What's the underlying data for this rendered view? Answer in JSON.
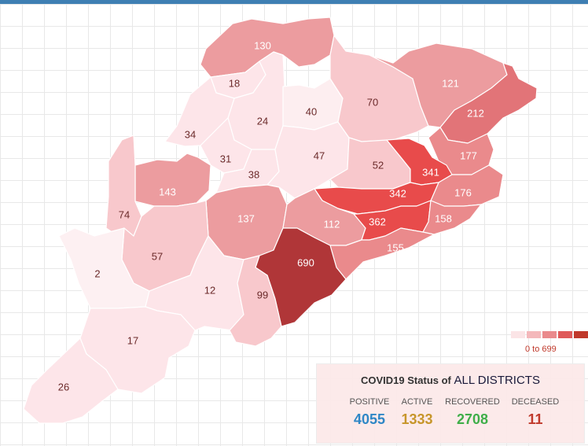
{
  "map": {
    "legend": {
      "colors": [
        "#fbe4e6",
        "#f4b8bb",
        "#ea8a8c",
        "#df5a5a",
        "#c0392b"
      ],
      "range_label": "0 to 699"
    },
    "districts": [
      {
        "id": "d130",
        "value": "130",
        "color": "#ec9c9f"
      },
      {
        "id": "d18",
        "value": "18",
        "color": "#fde5e9"
      },
      {
        "id": "d24",
        "value": "24",
        "color": "#fde5e9"
      },
      {
        "id": "d40",
        "value": "40",
        "color": "#fdeef0"
      },
      {
        "id": "d34",
        "value": "34",
        "color": "#fde5e9"
      },
      {
        "id": "d31",
        "value": "31",
        "color": "#fde5e9"
      },
      {
        "id": "d38",
        "value": "38",
        "color": "#fde5e9"
      },
      {
        "id": "d47",
        "value": "47",
        "color": "#fde5e9"
      },
      {
        "id": "d70",
        "value": "70",
        "color": "#f8c8cc"
      },
      {
        "id": "d121",
        "value": "121",
        "color": "#ec9c9f"
      },
      {
        "id": "d212",
        "value": "212",
        "color": "#e27478"
      },
      {
        "id": "d177",
        "value": "177",
        "color": "#ea8a8c"
      },
      {
        "id": "d52",
        "value": "52",
        "color": "#f8c8cc"
      },
      {
        "id": "d341",
        "value": "341",
        "color": "#e84b4b"
      },
      {
        "id": "d176",
        "value": "176",
        "color": "#ea8a8c"
      },
      {
        "id": "d342",
        "value": "342",
        "color": "#e84b4b"
      },
      {
        "id": "d143",
        "value": "143",
        "color": "#ec9c9f"
      },
      {
        "id": "d74",
        "value": "74",
        "color": "#f8c8cc"
      },
      {
        "id": "d137",
        "value": "137",
        "color": "#ec9c9f"
      },
      {
        "id": "d112",
        "value": "112",
        "color": "#ec9c9f"
      },
      {
        "id": "d362",
        "value": "362",
        "color": "#e84b4b"
      },
      {
        "id": "d158",
        "value": "158",
        "color": "#ea8a8c"
      },
      {
        "id": "d155",
        "value": "155",
        "color": "#ea8a8c"
      },
      {
        "id": "d57",
        "value": "57",
        "color": "#f8c8cc"
      },
      {
        "id": "d690",
        "value": "690",
        "color": "#b03638"
      },
      {
        "id": "d2",
        "value": "2",
        "color": "#fdf0f2"
      },
      {
        "id": "d12",
        "value": "12",
        "color": "#fde5e9"
      },
      {
        "id": "d99",
        "value": "99",
        "color": "#f8c8cc"
      },
      {
        "id": "d17",
        "value": "17",
        "color": "#fde5e9"
      },
      {
        "id": "d26",
        "value": "26",
        "color": "#fde5e9"
      }
    ]
  },
  "status": {
    "title_prefix": "COVID19 Status of",
    "title_emphasis": "ALL DISTRICTS",
    "stats": [
      {
        "label": "POSITIVE",
        "value": "4055",
        "color": "#2f87c6"
      },
      {
        "label": "ACTIVE",
        "value": "1333",
        "color": "#c7962b"
      },
      {
        "label": "RECOVERED",
        "value": "2708",
        "color": "#3fae49"
      },
      {
        "label": "DECEASED",
        "value": "11",
        "color": "#c0392b"
      }
    ]
  }
}
